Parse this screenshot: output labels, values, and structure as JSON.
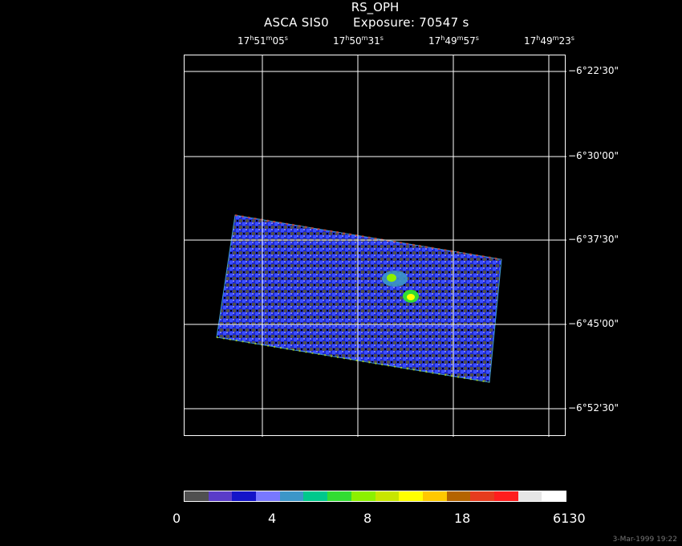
{
  "header": {
    "title": "RS_OPH",
    "instrument": "ASCA SIS0",
    "exposure": "Exposure: 70547 s"
  },
  "ra_ticks": [
    {
      "h": "17",
      "m": "51",
      "s": "05"
    },
    {
      "h": "17",
      "m": "50",
      "s": "31"
    },
    {
      "h": "17",
      "m": "49",
      "s": "57"
    },
    {
      "h": "17",
      "m": "49",
      "s": "23"
    }
  ],
  "dec_ticks": [
    "−6°22'30\"",
    "−6°30'00\"",
    "−6°37'30\"",
    "−6°45'00\"",
    "−6°52'30\""
  ],
  "colorbar": {
    "colors": [
      "#505050",
      "#5a3cc8",
      "#1414c8",
      "#7878ff",
      "#3c96c8",
      "#00c88c",
      "#32dc32",
      "#8cf000",
      "#c8e600",
      "#ffff00",
      "#ffc800",
      "#b46400",
      "#e63c1e",
      "#ff1e1e",
      "#e6e6e6",
      "#ffffff"
    ],
    "labels": [
      "0",
      "4",
      "8",
      "18",
      "6130"
    ]
  },
  "footer": {
    "timestamp": "3-Mar-1999 19:22"
  }
}
